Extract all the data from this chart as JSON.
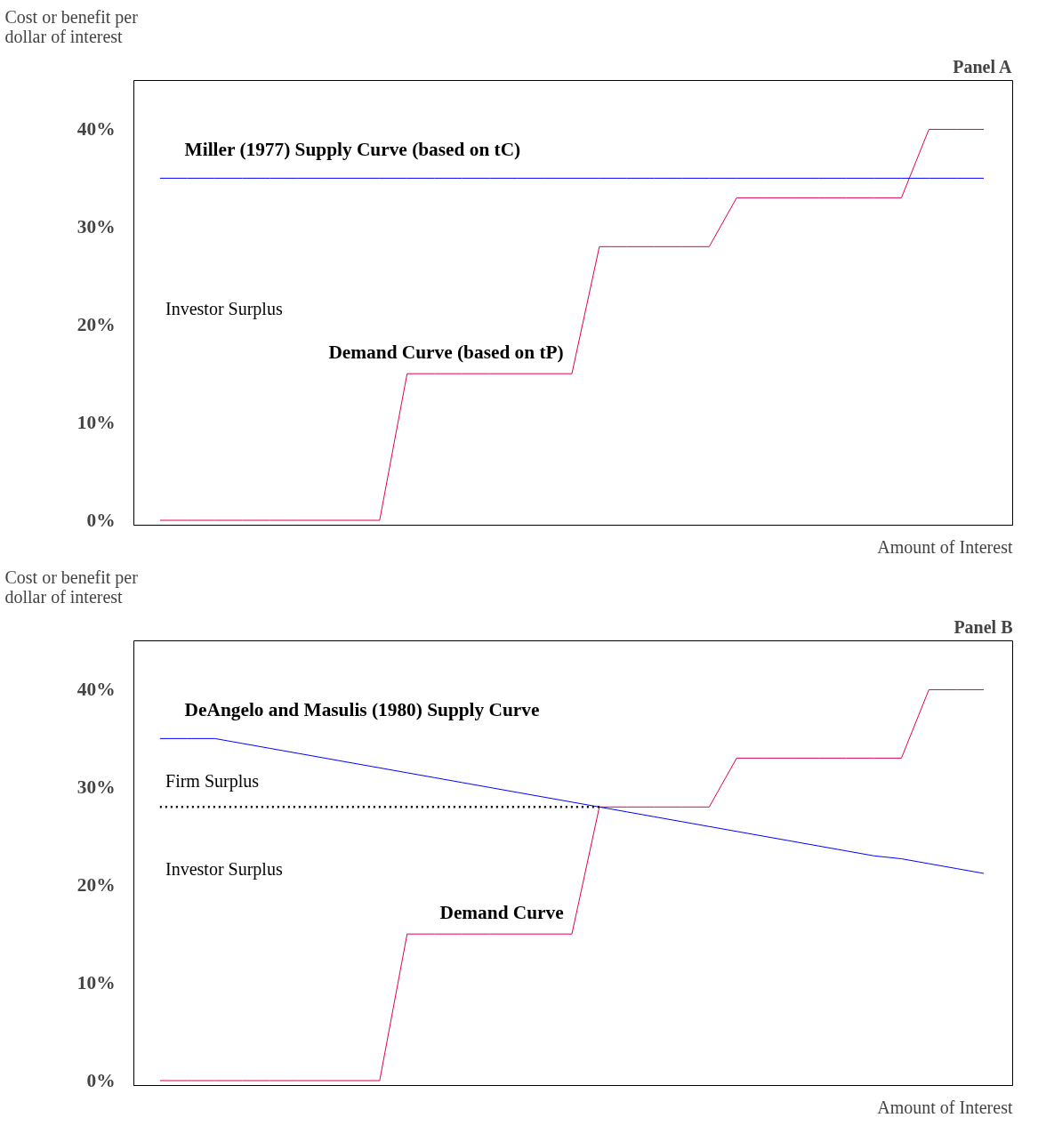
{
  "chart_data": [
    {
      "type": "line",
      "title": "Panel A",
      "ylabel": "Cost or benefit per\ndollar of interest",
      "xlabel": "Amount of Interest",
      "categories": [
        null,
        null,
        null,
        null,
        null,
        null,
        null,
        null,
        null,
        null,
        null,
        null,
        null,
        null,
        null,
        null,
        null,
        null,
        null,
        null,
        null,
        null,
        null,
        null,
        null,
        null,
        null,
        null,
        null,
        null,
        null
      ],
      "series": [
        {
          "name": "Demand Curve (based on tP)",
          "color": "#e0004e",
          "values": [
            0,
            0,
            0,
            0,
            0,
            0,
            0,
            0,
            0,
            15,
            15,
            15,
            15,
            15,
            15,
            15,
            28,
            28,
            28,
            28,
            28,
            33,
            33,
            33,
            33,
            33,
            33,
            33,
            40,
            40,
            40
          ]
        },
        {
          "name": "Miller (1977) Supply Curve (based on tC)",
          "color": "#0000ff",
          "values": [
            35,
            35,
            35,
            35,
            35,
            35,
            35,
            35,
            35,
            35,
            35,
            35,
            35,
            35,
            35,
            35,
            35,
            35,
            35,
            35,
            35,
            35,
            35,
            35,
            35,
            35,
            35,
            35,
            35,
            35,
            35
          ]
        }
      ],
      "ylim": [
        -0.5,
        45
      ],
      "yticks": [
        {
          "value": 0,
          "label": "0%"
        },
        {
          "value": 10,
          "label": "10%"
        },
        {
          "value": 20,
          "label": "20%"
        },
        {
          "value": 30,
          "label": "30%"
        },
        {
          "value": 40,
          "label": "40%"
        }
      ],
      "tick_labels": "y",
      "grid": false,
      "marker": "none",
      "line_style": "solid",
      "annotations": [
        "Investor Surplus"
      ]
    },
    {
      "type": "line",
      "title": "Panel B",
      "ylabel": "Cost or benefit per\ndollar of interest",
      "xlabel": "Amount of Interest",
      "categories": [
        null,
        null,
        null,
        null,
        null,
        null,
        null,
        null,
        null,
        null,
        null,
        null,
        null,
        null,
        null,
        null,
        null,
        null,
        null,
        null,
        null,
        null,
        null,
        null,
        null,
        null,
        null,
        null,
        null,
        null,
        null
      ],
      "series": [
        {
          "name": "Demand Curve",
          "color": "#e0004e",
          "values": [
            0,
            0,
            0,
            0,
            0,
            0,
            0,
            0,
            0,
            15,
            15,
            15,
            15,
            15,
            15,
            15,
            28,
            28,
            28,
            28,
            28,
            33,
            33,
            33,
            33,
            33,
            33,
            33,
            40,
            40,
            40
          ]
        },
        {
          "name": "DeAngelo and Masulis (1980) Supply Curve",
          "color": "#0000ff",
          "values": [
            35,
            35,
            35,
            34.5,
            34,
            33.5,
            33,
            32.5,
            32,
            31.5,
            31,
            30.5,
            30,
            29.5,
            29,
            28.5,
            28,
            27.5,
            27,
            26.5,
            26,
            25.5,
            25,
            24.5,
            24,
            23.5,
            23,
            22.7,
            22.2,
            21.7,
            21.2
          ]
        },
        {
          "color": "#000000",
          "line_style": "dotted",
          "values": [
            28,
            28,
            28,
            28,
            28,
            28,
            28,
            28,
            28,
            28,
            28,
            28,
            28,
            28,
            28,
            28,
            28,
            null,
            null,
            null,
            null,
            null,
            null,
            null,
            null,
            null,
            null,
            null,
            null,
            null,
            null
          ]
        }
      ],
      "ylim": [
        -0.5,
        45
      ],
      "yticks": [
        {
          "value": 0,
          "label": "0%"
        },
        {
          "value": 10,
          "label": "10%"
        },
        {
          "value": 20,
          "label": "20%"
        },
        {
          "value": 30,
          "label": "30%"
        },
        {
          "value": 40,
          "label": "40%"
        }
      ],
      "tick_labels": "y",
      "grid": false,
      "marker": "none",
      "line_style": "solid",
      "annotations": [
        "Firm Surplus",
        "Investor Surplus"
      ]
    }
  ]
}
